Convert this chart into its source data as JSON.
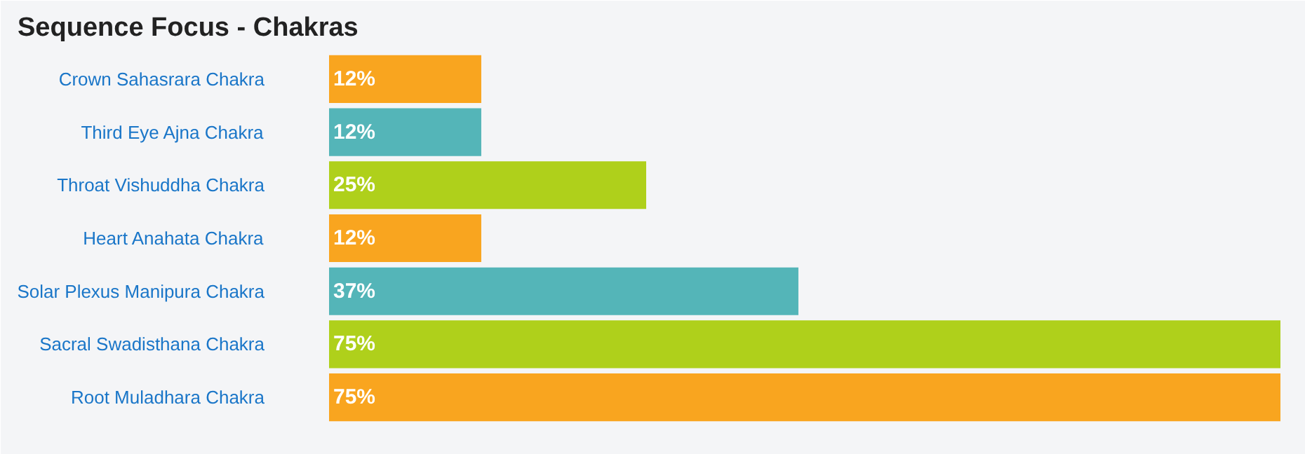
{
  "chart_data": {
    "type": "bar",
    "orientation": "horizontal",
    "title": "Sequence Focus - Chakras",
    "categories": [
      "Crown Sahasrara Chakra",
      "Third Eye Ajna Chakra",
      "Throat Vishuddha Chakra",
      "Heart Anahata Chakra",
      "Solar Plexus Manipura Chakra",
      "Sacral Swadisthana Chakra",
      "Root Muladhara Chakra"
    ],
    "values": [
      12,
      12,
      25,
      12,
      37,
      75,
      75
    ],
    "value_labels": [
      "12%",
      "12%",
      "25%",
      "12%",
      "37%",
      "75%",
      "75%"
    ],
    "colors": [
      "#f9a51f",
      "#54b5b8",
      "#afd01b",
      "#f9a51f",
      "#54b5b8",
      "#afd01b",
      "#f9a51f"
    ],
    "xlim": [
      0,
      75
    ],
    "tick_labels": "y",
    "grid": false
  }
}
